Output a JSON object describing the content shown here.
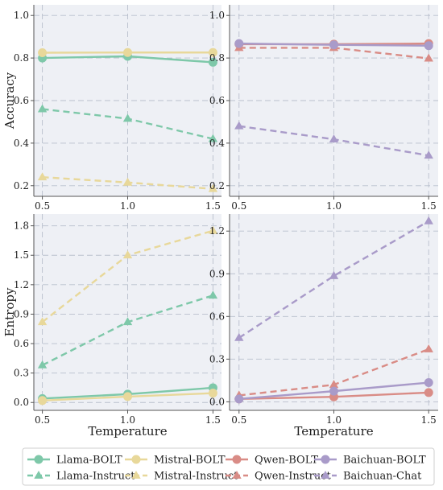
{
  "chart_data": [
    {
      "type": "line",
      "panel": "top-left",
      "xlabel": "",
      "ylabel": "Accuracy",
      "x": [
        0.5,
        1.0,
        1.5
      ],
      "xticks": [
        "0.5",
        "1.0",
        "1.5"
      ],
      "ylim": [
        0.15,
        1.05
      ],
      "yticks": [
        "0.2",
        "0.4",
        "0.6",
        "0.8",
        "1.0"
      ],
      "grid": true,
      "series": [
        {
          "name": "Llama-BOLT",
          "color": "#7ec8a9",
          "style": "solid",
          "marker": "circle",
          "values": [
            0.8,
            0.808,
            0.78
          ]
        },
        {
          "name": "Mistral-BOLT",
          "color": "#e8d89a",
          "style": "solid",
          "marker": "circle",
          "values": [
            0.825,
            0.826,
            0.826
          ]
        },
        {
          "name": "Llama-Instruct",
          "color": "#7ec8a9",
          "style": "dashed",
          "marker": "triangle",
          "values": [
            0.56,
            0.515,
            0.42
          ]
        },
        {
          "name": "Mistral-Instruct",
          "color": "#e8d89a",
          "style": "dashed",
          "marker": "triangle",
          "values": [
            0.24,
            0.215,
            0.185
          ]
        }
      ]
    },
    {
      "type": "line",
      "panel": "top-right",
      "xlabel": "",
      "ylabel": "",
      "x": [
        0.5,
        1.0,
        1.5
      ],
      "xticks": [
        "0.5",
        "1.0",
        "1.5"
      ],
      "ylim": [
        0.15,
        1.05
      ],
      "yticks": [
        "0.2",
        "0.4",
        "0.6",
        "0.8",
        "1.0"
      ],
      "grid": true,
      "series": [
        {
          "name": "Qwen-BOLT",
          "color": "#d98c86",
          "style": "solid",
          "marker": "circle",
          "values": [
            0.865,
            0.865,
            0.868
          ]
        },
        {
          "name": "Baichuan-BOLT",
          "color": "#a99bc9",
          "style": "solid",
          "marker": "circle",
          "values": [
            0.868,
            0.862,
            0.858
          ]
        },
        {
          "name": "Qwen-Instruct",
          "color": "#d98c86",
          "style": "dashed",
          "marker": "triangle",
          "values": [
            0.848,
            0.848,
            0.798
          ]
        },
        {
          "name": "Baichuan-Chat",
          "color": "#a99bc9",
          "style": "dashed",
          "marker": "triangle",
          "values": [
            0.48,
            0.418,
            0.342
          ]
        }
      ]
    },
    {
      "type": "line",
      "panel": "bottom-left",
      "xlabel": "Temperature",
      "ylabel": "Entropy",
      "x": [
        0.5,
        1.0,
        1.5
      ],
      "xticks": [
        "0.5",
        "1.0",
        "1.5"
      ],
      "ylim": [
        -0.08,
        1.92
      ],
      "yticks": [
        "0.0",
        "0.3",
        "0.6",
        "0.9",
        "1.2",
        "1.5",
        "1.8"
      ],
      "grid": true,
      "series": [
        {
          "name": "Llama-BOLT",
          "color": "#7ec8a9",
          "style": "solid",
          "marker": "circle",
          "values": [
            0.04,
            0.085,
            0.15
          ]
        },
        {
          "name": "Mistral-BOLT",
          "color": "#e8d89a",
          "style": "solid",
          "marker": "circle",
          "values": [
            0.02,
            0.06,
            0.095
          ]
        },
        {
          "name": "Llama-Instruct",
          "color": "#7ec8a9",
          "style": "dashed",
          "marker": "triangle",
          "values": [
            0.38,
            0.82,
            1.09
          ]
        },
        {
          "name": "Mistral-Instruct",
          "color": "#e8d89a",
          "style": "dashed",
          "marker": "triangle",
          "values": [
            0.82,
            1.5,
            1.75
          ]
        }
      ]
    },
    {
      "type": "line",
      "panel": "bottom-right",
      "xlabel": "Temperature",
      "ylabel": "",
      "x": [
        0.5,
        1.0,
        1.5
      ],
      "xticks": [
        "0.5",
        "1.0",
        "1.5"
      ],
      "ylim": [
        -0.06,
        1.32
      ],
      "yticks": [
        "0.0",
        "0.3",
        "0.6",
        "0.9",
        "1.2"
      ],
      "grid": true,
      "series": [
        {
          "name": "Qwen-BOLT",
          "color": "#d98c86",
          "style": "solid",
          "marker": "circle",
          "values": [
            0.02,
            0.035,
            0.065
          ]
        },
        {
          "name": "Baichuan-BOLT",
          "color": "#a99bc9",
          "style": "solid",
          "marker": "circle",
          "values": [
            0.02,
            0.075,
            0.135
          ]
        },
        {
          "name": "Qwen-Instruct",
          "color": "#d98c86",
          "style": "dashed",
          "marker": "triangle",
          "values": [
            0.045,
            0.12,
            0.37
          ]
        },
        {
          "name": "Baichuan-Chat",
          "color": "#a99bc9",
          "style": "dashed",
          "marker": "triangle",
          "values": [
            0.45,
            0.885,
            1.27
          ]
        }
      ]
    }
  ],
  "legend": {
    "placement": "bottom",
    "entries": [
      {
        "label": "Llama-BOLT",
        "color": "#7ec8a9",
        "style": "solid",
        "marker": "circle"
      },
      {
        "label": "Mistral-BOLT",
        "color": "#e8d89a",
        "style": "solid",
        "marker": "circle"
      },
      {
        "label": "Qwen-BOLT",
        "color": "#d98c86",
        "style": "solid",
        "marker": "circle"
      },
      {
        "label": "Baichuan-BOLT",
        "color": "#a99bc9",
        "style": "solid",
        "marker": "circle"
      },
      {
        "label": "Llama-Instruct",
        "color": "#7ec8a9",
        "style": "dashed",
        "marker": "triangle"
      },
      {
        "label": "Mistral-Instruct",
        "color": "#e8d89a",
        "style": "dashed",
        "marker": "triangle"
      },
      {
        "label": "Qwen-Instruct",
        "color": "#d98c86",
        "style": "dashed",
        "marker": "triangle"
      },
      {
        "label": "Baichuan-Chat",
        "color": "#a99bc9",
        "style": "dashed",
        "marker": "triangle"
      }
    ]
  },
  "colors": {
    "panel_background": "#eef0f5",
    "grid": "#b9bfcd"
  }
}
